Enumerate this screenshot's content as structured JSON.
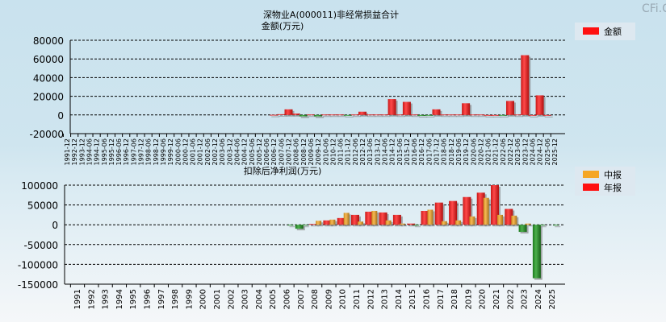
{
  "watermark": "CFi.CN",
  "chart_data": [
    {
      "type": "bar",
      "title": "深物业A(000011)非经常损益合计",
      "subtitle": "金额(万元)",
      "legend": [
        {
          "label": "金额",
          "color": "#ff2020"
        }
      ],
      "legend_position": "top-right",
      "ylim": [
        -20000,
        80000
      ],
      "yticks": [
        "80000",
        "60000",
        "40000",
        "20000",
        "0",
        "-20000"
      ],
      "yticks_values": [
        80000,
        60000,
        40000,
        20000,
        0,
        -20000
      ],
      "categories": [
        "1991-12",
        "1992-12",
        "1993-12",
        "1994-06",
        "1994-12",
        "1995-06",
        "1995-12",
        "1996-06",
        "1996-12",
        "1997-06",
        "1997-12",
        "1998-06",
        "1998-12",
        "1999-06",
        "1999-12",
        "2000-06",
        "2000-12",
        "2001-06",
        "2001-12",
        "2002-06",
        "2002-12",
        "2003-06",
        "2003-12",
        "2004-06",
        "2004-12",
        "2005-06",
        "2005-12",
        "2006-06",
        "2006-12",
        "2007-06",
        "2007-12",
        "2008-06",
        "2008-12",
        "2009-06",
        "2009-12",
        "2010-06",
        "2010-12",
        "2011-06",
        "2011-12",
        "2012-06",
        "2012-12",
        "2013-06",
        "2013-12",
        "2014-06",
        "2014-12",
        "2015-06",
        "2015-12",
        "2016-06",
        "2016-12",
        "2017-06",
        "2017-12",
        "2018-06",
        "2018-12",
        "2019-06",
        "2019-12",
        "2020-06",
        "2020-12",
        "2021-06",
        "2021-12",
        "2022-06",
        "2022-12",
        "2023-06",
        "2023-12",
        "2024-06",
        "2024-12",
        "2025-06",
        "2025-12"
      ],
      "values": [
        null,
        null,
        null,
        null,
        null,
        null,
        null,
        null,
        null,
        null,
        null,
        null,
        null,
        null,
        null,
        null,
        null,
        null,
        null,
        null,
        null,
        null,
        null,
        null,
        null,
        null,
        null,
        null,
        200,
        800,
        6000,
        1500,
        -1500,
        500,
        -1500,
        500,
        500,
        500,
        -500,
        500,
        3500,
        500,
        500,
        500,
        17000,
        500,
        14000,
        500,
        -1000,
        -500,
        6000,
        500,
        500,
        500,
        12500,
        500,
        500,
        0,
        0,
        -500,
        15000,
        500,
        64000,
        0,
        21000,
        0,
        null
      ]
    },
    {
      "type": "bar",
      "title": "扣除后净利润(万元)",
      "legend": [
        {
          "label": "中报",
          "color": "#f5a623"
        },
        {
          "label": "年报",
          "color": "#ff2020"
        }
      ],
      "legend_position": "top-right",
      "ylim": [
        -150000,
        100000
      ],
      "yticks": [
        "100000",
        "50000",
        "0",
        "-50000",
        "-100000",
        "-150000"
      ],
      "yticks_values": [
        100000,
        50000,
        0,
        -50000,
        -100000,
        -150000
      ],
      "categories": [
        "1991",
        "1992",
        "1993",
        "1994",
        "1995",
        "1996",
        "1997",
        "1998",
        "1999",
        "2000",
        "2001",
        "2002",
        "2003",
        "2004",
        "2005",
        "2006",
        "2007",
        "2008",
        "2009",
        "2010",
        "2011",
        "2012",
        "2013",
        "2014",
        "2015",
        "2016",
        "2017",
        "2018",
        "2019",
        "2020",
        "2021",
        "2022",
        "2023",
        "2024",
        "2025"
      ],
      "series": [
        {
          "name": "年报",
          "values": [
            null,
            null,
            null,
            null,
            null,
            null,
            null,
            null,
            null,
            null,
            null,
            null,
            null,
            null,
            null,
            null,
            -10000,
            2000,
            11000,
            17000,
            25000,
            33000,
            31000,
            25000,
            3000,
            35000,
            56000,
            60000,
            70000,
            81000,
            100000,
            40000,
            -18000,
            -135000,
            null
          ]
        },
        {
          "name": "中报",
          "values": [
            null,
            null,
            null,
            null,
            null,
            null,
            null,
            null,
            null,
            null,
            null,
            null,
            null,
            null,
            null,
            -1000,
            -2000,
            10000,
            13000,
            30000,
            8000,
            35000,
            11000,
            3000,
            -1000,
            38000,
            9000,
            11000,
            21000,
            68000,
            25000,
            23000,
            3000,
            -2000,
            -2000
          ]
        }
      ]
    }
  ]
}
